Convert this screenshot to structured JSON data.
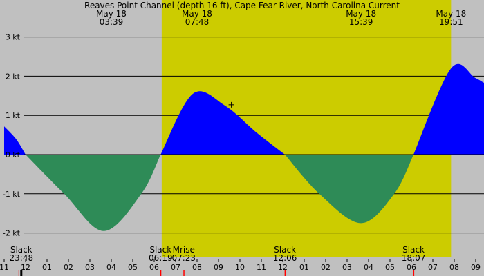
{
  "chart_data": {
    "type": "area",
    "title": "Reaves Point Channel (depth 16 ft), Cape Fear River, North Carolina Current",
    "unit": "kt",
    "colors": {
      "night": "#c0c0c0",
      "day": "#cccc00",
      "flood": "#0000ff",
      "ebb": "#2e8b57",
      "grid": "#000000",
      "text": "#000000",
      "tick_marker": "#ff0000",
      "now_marker": "#000000"
    },
    "x_range_hours": [
      -13.0,
      9.9
    ],
    "ylim": [
      -2.55,
      3.3
    ],
    "y_ticks": [
      {
        "value": 3,
        "label": "3 kt"
      },
      {
        "value": 2,
        "label": "2 kt"
      },
      {
        "value": 1,
        "label": "1 kt"
      },
      {
        "value": 0,
        "label": "0 kt"
      },
      {
        "value": -1,
        "label": "-1 kt"
      },
      {
        "value": -2,
        "label": "-2 kt"
      }
    ],
    "x_ticks": [
      {
        "hour": -13,
        "label": "11"
      },
      {
        "hour": -12,
        "label": "12"
      },
      {
        "hour": -11,
        "label": "01"
      },
      {
        "hour": -10,
        "label": "02"
      },
      {
        "hour": -9,
        "label": "03"
      },
      {
        "hour": -8,
        "label": "04"
      },
      {
        "hour": -7,
        "label": "05"
      },
      {
        "hour": -6,
        "label": "06"
      },
      {
        "hour": -5,
        "label": "07"
      },
      {
        "hour": -4,
        "label": "08"
      },
      {
        "hour": -3,
        "label": "09"
      },
      {
        "hour": -2,
        "label": "10"
      },
      {
        "hour": -1,
        "label": "11"
      },
      {
        "hour": 0,
        "label": "12"
      },
      {
        "hour": 1,
        "label": "01"
      },
      {
        "hour": 2,
        "label": "02"
      },
      {
        "hour": 3,
        "label": "03"
      },
      {
        "hour": 4,
        "label": "04"
      },
      {
        "hour": 5,
        "label": "05"
      },
      {
        "hour": 6,
        "label": "06"
      },
      {
        "hour": 7,
        "label": "07"
      },
      {
        "hour": 8,
        "label": "08"
      },
      {
        "hour": 9,
        "label": "09"
      }
    ],
    "daylight_hours": [
      -5.65,
      7.85
    ],
    "series": [
      {
        "kind": "flood",
        "points": [
          [
            -13.0,
            0.72
          ],
          [
            -12.45,
            0.4
          ],
          [
            -12.0,
            0.0
          ]
        ]
      },
      {
        "kind": "ebb",
        "points": [
          [
            -12.0,
            0.0
          ],
          [
            -10.2,
            -1.0
          ],
          [
            -8.35,
            -1.95
          ],
          [
            -6.6,
            -1.0
          ],
          [
            -5.7,
            0.0
          ]
        ]
      },
      {
        "kind": "flood",
        "points": [
          [
            -5.7,
            0.0
          ],
          [
            -4.2,
            1.55
          ],
          [
            -2.7,
            1.25
          ],
          [
            -1.2,
            0.55
          ],
          [
            0.1,
            0.0
          ]
        ]
      },
      {
        "kind": "ebb",
        "points": [
          [
            0.1,
            0.0
          ],
          [
            1.7,
            -1.0
          ],
          [
            3.65,
            -1.75
          ],
          [
            5.2,
            -1.0
          ],
          [
            6.1,
            0.0
          ]
        ]
      },
      {
        "kind": "flood",
        "points": [
          [
            6.1,
            0.0
          ],
          [
            7.85,
            2.2
          ],
          [
            9.0,
            1.95
          ],
          [
            9.9,
            1.65
          ]
        ]
      }
    ],
    "top_annotations": [
      {
        "hour": -8.0,
        "line1": "May 18",
        "line2": "03:39"
      },
      {
        "hour": -4.0,
        "line1": "May 18",
        "line2": "07:48"
      },
      {
        "hour": 3.65,
        "line1": "May 18",
        "line2": "15:39"
      },
      {
        "hour": 7.85,
        "line1": "May 18",
        "line2": "19:51"
      }
    ],
    "bottom_annotations": [
      {
        "hour": -12.2,
        "line1": "Slack",
        "line2": "23:48"
      },
      {
        "hour": -5.7,
        "line1": "Slack",
        "line2": "06:19"
      },
      {
        "hour": -4.62,
        "line1": "Mrise",
        "line2": "07:23"
      },
      {
        "hour": 0.1,
        "line1": "Slack",
        "line2": "12:06"
      },
      {
        "hour": 6.1,
        "line1": "Slack",
        "line2": "18:07"
      }
    ],
    "event_markers": [
      {
        "hour": -12.2,
        "kind": "now_marker"
      },
      {
        "hour": -5.7,
        "kind": "tick_marker"
      },
      {
        "hour": -4.62,
        "kind": "tick_marker"
      },
      {
        "hour": 0.1,
        "kind": "tick_marker"
      },
      {
        "hour": 6.1,
        "kind": "tick_marker"
      }
    ],
    "cursor": {
      "hour": -2.4,
      "value": 1.27
    }
  }
}
